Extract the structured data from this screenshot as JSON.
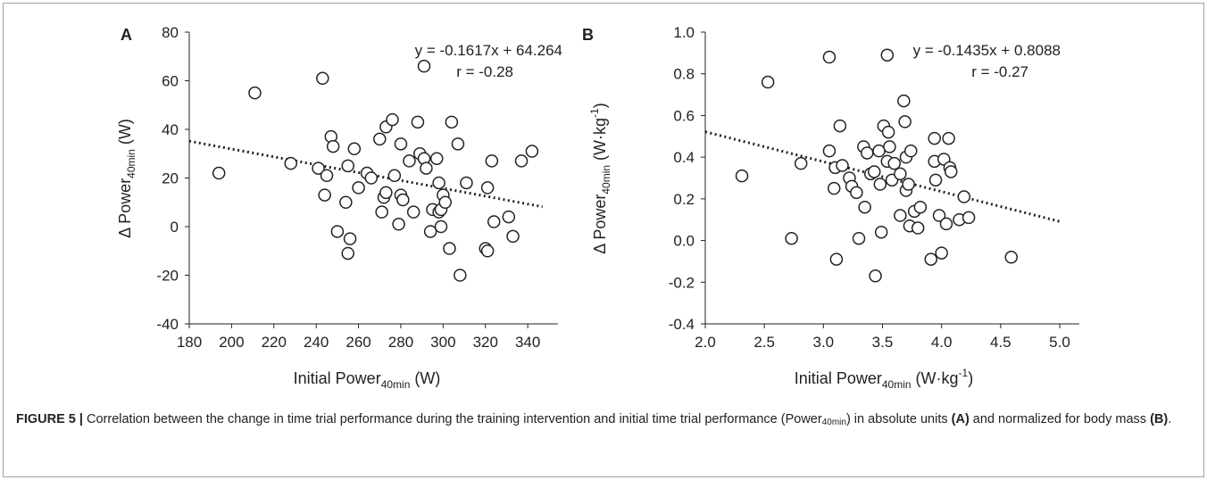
{
  "chart_data": [
    {
      "type": "scatter",
      "panel_label": "A",
      "xlabel": "Initial Power",
      "xlabel_sub": "40min",
      "xlabel_unit": "(W)",
      "ylabel": "Δ Power",
      "ylabel_sub": "40min",
      "ylabel_unit": "(W)",
      "xlim": [
        180,
        345
      ],
      "ylim": [
        -40,
        80
      ],
      "xticks": [
        180,
        200,
        220,
        240,
        260,
        280,
        300,
        320,
        340
      ],
      "yticks": [
        -40,
        -20,
        0,
        20,
        40,
        60,
        80
      ],
      "equation": "y = -0.1617x + 64.264",
      "r_text": "r = -0.28",
      "trendline": {
        "slope": -0.1617,
        "intercept": 64.264,
        "x_range": [
          180,
          347
        ]
      },
      "points": [
        [
          194,
          22
        ],
        [
          211,
          55
        ],
        [
          228,
          26
        ],
        [
          241,
          24
        ],
        [
          243,
          61
        ],
        [
          244,
          13
        ],
        [
          245,
          21
        ],
        [
          247,
          37
        ],
        [
          248,
          33
        ],
        [
          250,
          -2
        ],
        [
          254,
          10
        ],
        [
          255,
          25
        ],
        [
          255,
          -11
        ],
        [
          256,
          -5
        ],
        [
          258,
          32
        ],
        [
          260,
          16
        ],
        [
          264,
          22
        ],
        [
          266,
          20
        ],
        [
          270,
          36
        ],
        [
          271,
          6
        ],
        [
          272,
          12
        ],
        [
          273,
          14
        ],
        [
          273,
          41
        ],
        [
          276,
          44
        ],
        [
          277,
          21
        ],
        [
          279,
          1
        ],
        [
          280,
          34
        ],
        [
          280,
          13
        ],
        [
          281,
          11
        ],
        [
          284,
          27
        ],
        [
          286,
          6
        ],
        [
          288,
          43
        ],
        [
          289,
          30
        ],
        [
          291,
          28
        ],
        [
          291,
          66
        ],
        [
          292,
          24
        ],
        [
          294,
          -2
        ],
        [
          295,
          7
        ],
        [
          297,
          28
        ],
        [
          298,
          18
        ],
        [
          298,
          6
        ],
        [
          299,
          7
        ],
        [
          299,
          0
        ],
        [
          300,
          13
        ],
        [
          301,
          10
        ],
        [
          303,
          -9
        ],
        [
          304,
          43
        ],
        [
          307,
          34
        ],
        [
          308,
          -20
        ],
        [
          311,
          18
        ],
        [
          320,
          -9
        ],
        [
          321,
          -10
        ],
        [
          321,
          16
        ],
        [
          323,
          27
        ],
        [
          324,
          2
        ],
        [
          331,
          4
        ],
        [
          333,
          -4
        ],
        [
          337,
          27
        ],
        [
          342,
          31
        ]
      ]
    },
    {
      "type": "scatter",
      "panel_label": "B",
      "xlabel": "Initial Power",
      "xlabel_sub": "40min",
      "xlabel_unit_pre": "(W·kg",
      "xlabel_unit_sup": "-1",
      "xlabel_unit_post": ")",
      "ylabel": "Δ Power",
      "ylabel_sub": "40min",
      "ylabel_unit_pre": "(W·kg",
      "ylabel_unit_sup": "-1",
      "ylabel_unit_post": ")",
      "xlim": [
        2.0,
        5.0
      ],
      "ylim": [
        -0.4,
        1.0
      ],
      "xticks": [
        "2.0",
        "2.5",
        "3.0",
        "3.5",
        "4.0",
        "4.5",
        "5.0"
      ],
      "yticks": [
        "-0.4",
        "-0.2",
        "0.0",
        "0.2",
        "0.4",
        "0.6",
        "0.8",
        "1.0"
      ],
      "equation": "y = -0.1435x + 0.8088",
      "r_text": "r = -0.27",
      "trendline": {
        "slope": -0.1435,
        "intercept": 0.8088,
        "x_range": [
          2.0,
          5.0
        ]
      },
      "points": [
        [
          2.31,
          0.31
        ],
        [
          2.53,
          0.76
        ],
        [
          2.73,
          0.01
        ],
        [
          2.81,
          0.37
        ],
        [
          3.05,
          0.88
        ],
        [
          3.05,
          0.43
        ],
        [
          3.09,
          0.25
        ],
        [
          3.1,
          0.35
        ],
        [
          3.11,
          -0.09
        ],
        [
          3.14,
          0.55
        ],
        [
          3.16,
          0.36
        ],
        [
          3.22,
          0.3
        ],
        [
          3.24,
          0.26
        ],
        [
          3.28,
          0.23
        ],
        [
          3.3,
          0.01
        ],
        [
          3.34,
          0.45
        ],
        [
          3.35,
          0.16
        ],
        [
          3.37,
          0.42
        ],
        [
          3.4,
          0.32
        ],
        [
          3.43,
          0.33
        ],
        [
          3.44,
          -0.17
        ],
        [
          3.47,
          0.43
        ],
        [
          3.48,
          0.27
        ],
        [
          3.49,
          0.04
        ],
        [
          3.51,
          0.55
        ],
        [
          3.54,
          0.89
        ],
        [
          3.54,
          0.38
        ],
        [
          3.55,
          0.52
        ],
        [
          3.56,
          0.45
        ],
        [
          3.58,
          0.29
        ],
        [
          3.6,
          0.37
        ],
        [
          3.65,
          0.32
        ],
        [
          3.65,
          0.12
        ],
        [
          3.68,
          0.67
        ],
        [
          3.69,
          0.57
        ],
        [
          3.7,
          0.4
        ],
        [
          3.7,
          0.24
        ],
        [
          3.72,
          0.27
        ],
        [
          3.73,
          0.07
        ],
        [
          3.74,
          0.43
        ],
        [
          3.77,
          0.14
        ],
        [
          3.8,
          0.06
        ],
        [
          3.82,
          0.16
        ],
        [
          3.91,
          -0.09
        ],
        [
          3.94,
          0.49
        ],
        [
          3.94,
          0.38
        ],
        [
          3.95,
          0.29
        ],
        [
          3.98,
          0.12
        ],
        [
          4.0,
          -0.06
        ],
        [
          4.02,
          0.39
        ],
        [
          4.04,
          0.08
        ],
        [
          4.06,
          0.49
        ],
        [
          4.07,
          0.35
        ],
        [
          4.08,
          0.33
        ],
        [
          4.15,
          0.1
        ],
        [
          4.19,
          0.21
        ],
        [
          4.23,
          0.11
        ],
        [
          4.59,
          -0.08
        ]
      ]
    }
  ],
  "caption": {
    "label": "FIGURE 5 |",
    "text_1": " Correlation between the change in time trial performance during the training intervention and initial time trial performance (Power",
    "text_sub": "40min",
    "text_2": ") in absolute units ",
    "ref_a": "(A)",
    "text_3": " and normalized for body mass ",
    "ref_b": "(B)",
    "text_4": "."
  }
}
